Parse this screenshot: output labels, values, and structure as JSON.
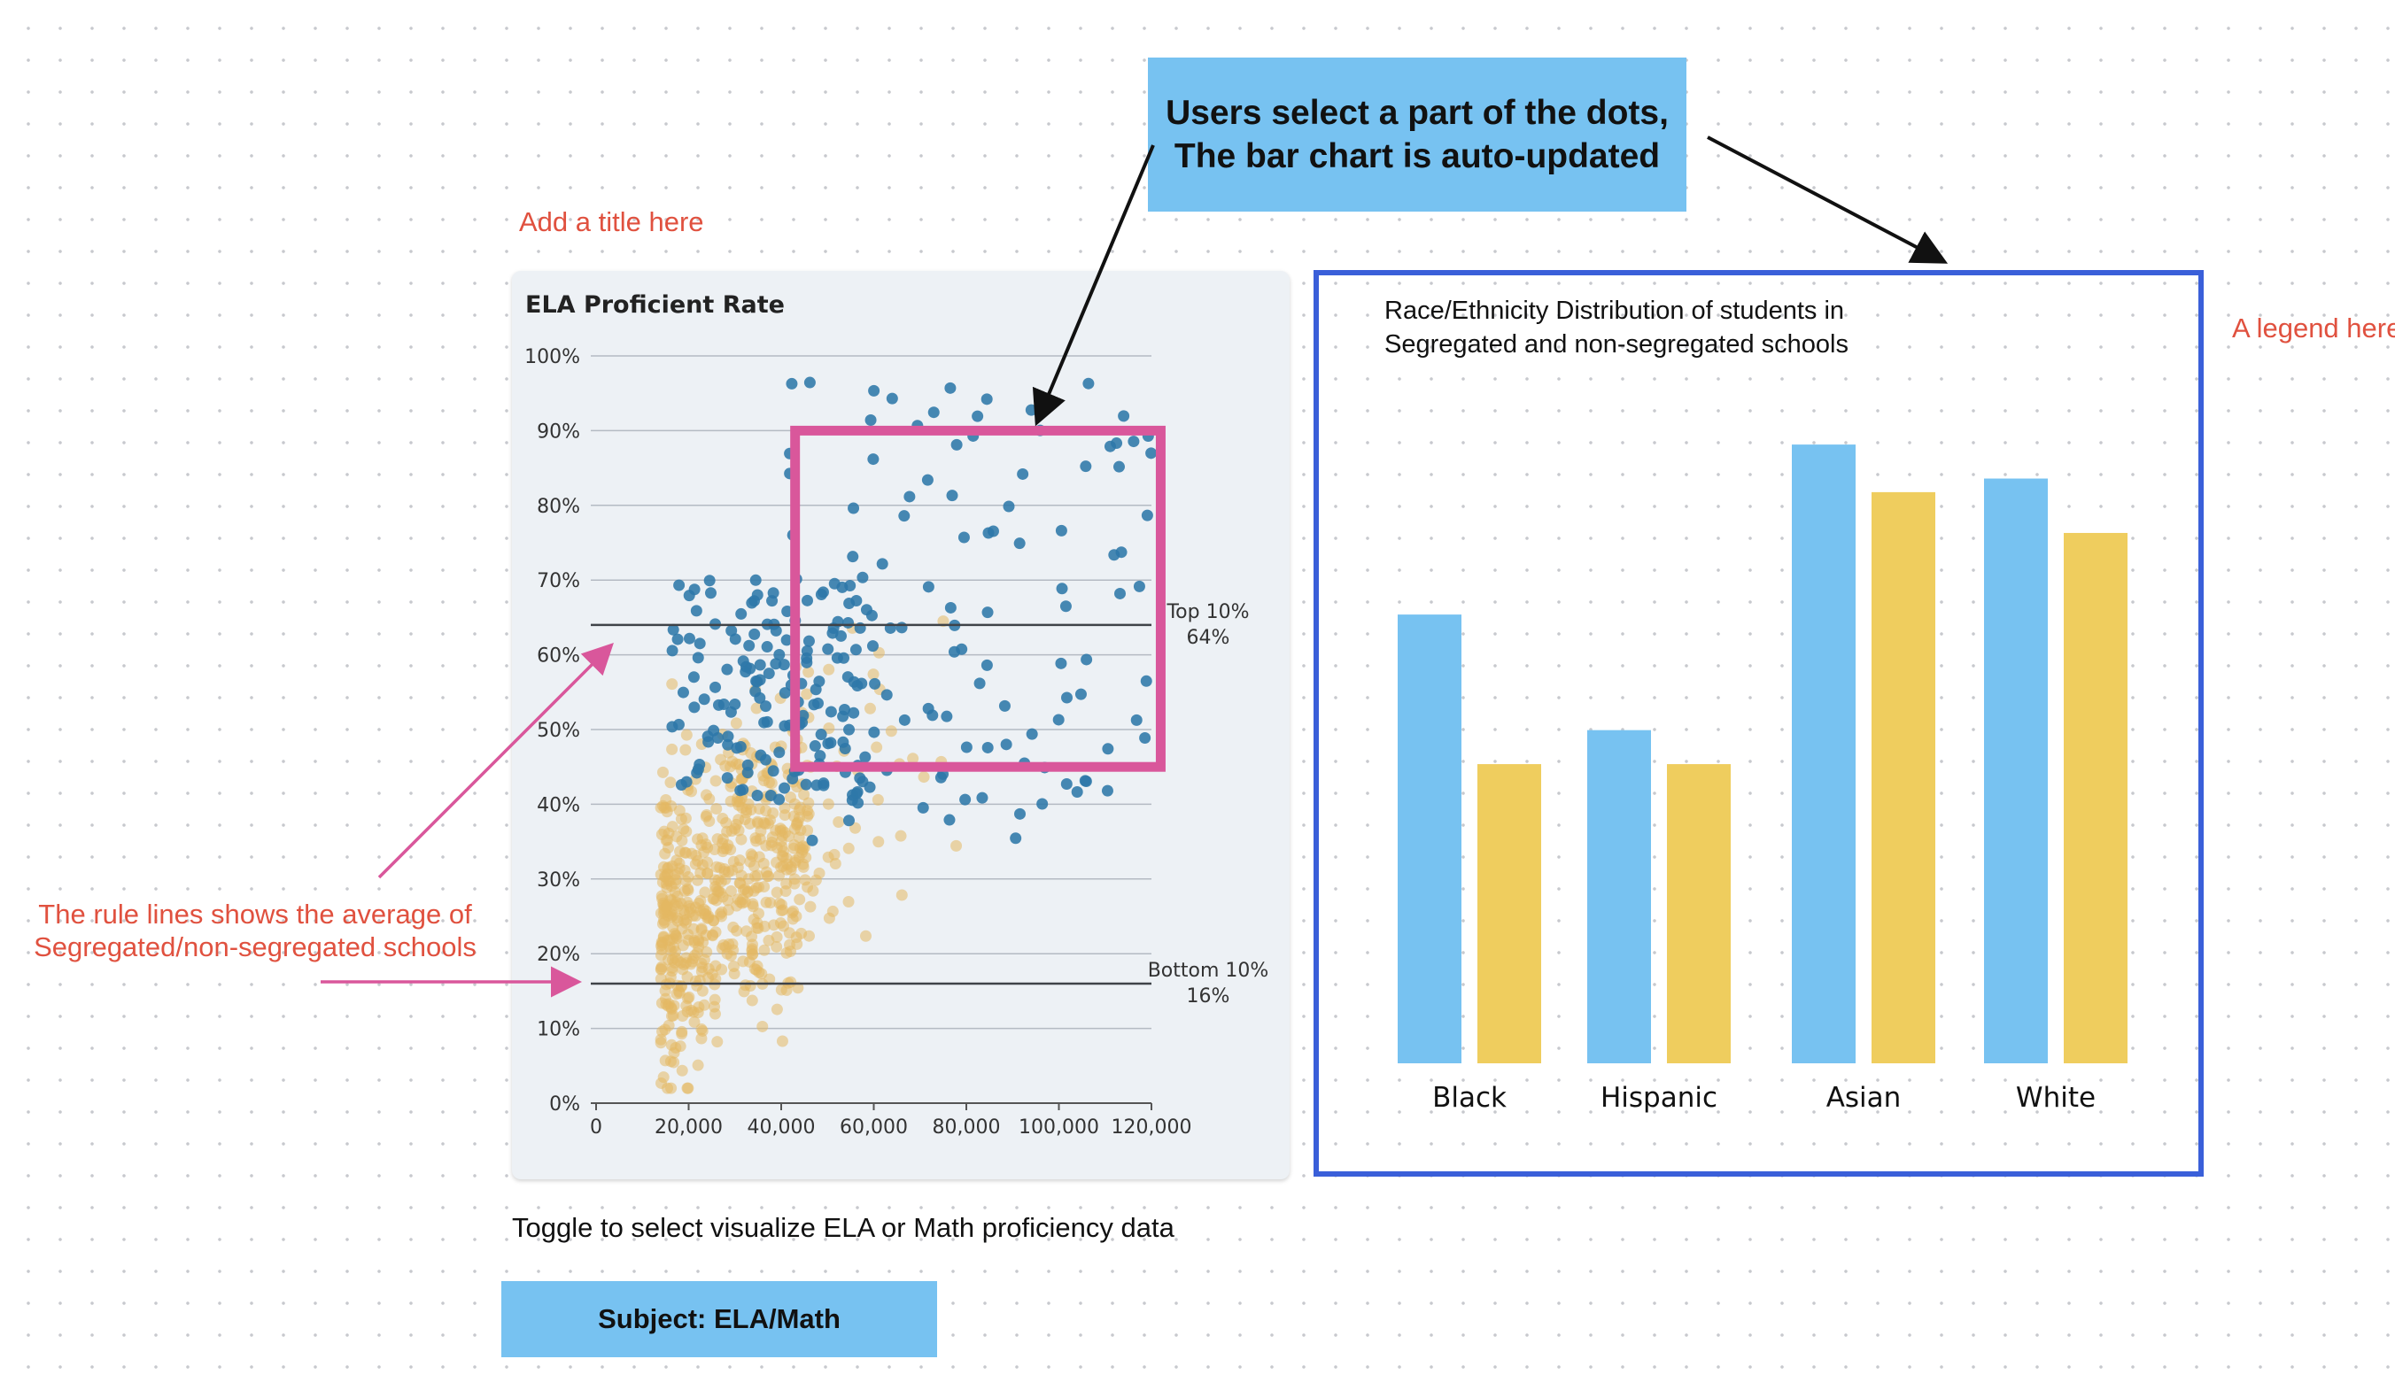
{
  "callout": {
    "line1": "Users select a part of the dots,",
    "line2": "The bar chart is auto-updated"
  },
  "notes": {
    "add_title": "Add a title here",
    "legend": "A legend here",
    "rule_lines_1": "The rule lines shows the average of",
    "rule_lines_2": "Segregated/non-segregated schools"
  },
  "toggle": {
    "caption": "Toggle to select visualize ELA or Math proficiency data",
    "button_label": "Subject: ELA/Math"
  },
  "colors": {
    "segregated": "#2e77a8",
    "non_segregated": "#e3b862",
    "bar_blue": "#77c2f1",
    "bar_yellow": "#efcd5e",
    "selection": "#d9579b",
    "frame": "#3a5fd9"
  },
  "chart_data": [
    {
      "type": "scatter",
      "title": "ELA Proficient Rate",
      "xlim": [
        0,
        120000
      ],
      "ylim": [
        0,
        100
      ],
      "x_ticks": [
        "0",
        "20,000",
        "40,000",
        "60,000",
        "80,000",
        "100,000",
        "120,000"
      ],
      "y_ticks": [
        "0%",
        "10%",
        "20%",
        "30%",
        "40%",
        "50%",
        "60%",
        "70%",
        "80%",
        "90%",
        "100%"
      ],
      "grid": true,
      "rules": [
        {
          "label": "Top 10%",
          "value_label": "64%",
          "y": 64
        },
        {
          "label": "Bottom 10%",
          "value_label": "16%",
          "y": 16
        }
      ],
      "selection": {
        "x": [
          43000,
          122000
        ],
        "y": [
          45,
          90
        ]
      }
    },
    {
      "type": "bar",
      "title_line1": "Race/Ethnicity Distribution of students in",
      "title_line2": "Segregated and non-segregated schools",
      "categories": [
        "Black",
        "Hispanic",
        "Asian",
        "White"
      ],
      "series": [
        {
          "values": [
            66,
            49,
            91,
            86
          ]
        },
        {
          "values": [
            44,
            44,
            84,
            78
          ]
        }
      ]
    }
  ]
}
